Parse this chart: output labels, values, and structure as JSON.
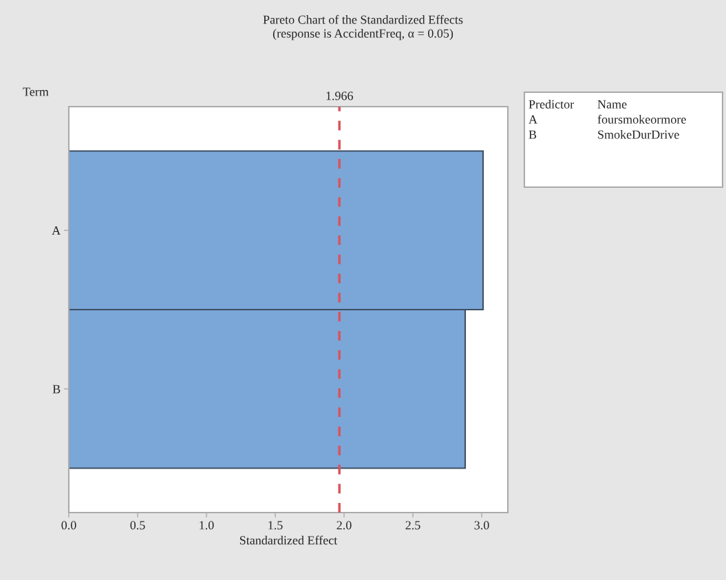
{
  "chart_data": {
    "type": "bar",
    "orientation": "horizontal",
    "title": "Pareto Chart of the Standardized Effects",
    "subtitle": "(response is AccidentFreq, α = 0.05)",
    "xlabel": "Standardized Effect",
    "ylabel": "Term",
    "categories": [
      "A",
      "B"
    ],
    "values": [
      3.01,
      2.88
    ],
    "color": "#7ba6d8",
    "xlim": [
      0,
      3.19
    ],
    "xticks": [
      {
        "value": 0,
        "label": "0.0"
      },
      0.5,
      {
        "value": 1,
        "label": "1.0"
      },
      1.5,
      {
        "value": 2,
        "label": "2.0"
      },
      2.5,
      {
        "value": 3,
        "label": "3.0"
      }
    ],
    "ref_lines": [
      {
        "axis": "x",
        "value": 1.966,
        "label": "1.966",
        "color": "#d9545c",
        "line_style": "dashed"
      }
    ],
    "annotations": [
      "Predictor",
      "Name",
      "A",
      "foursmokeormore",
      "B",
      "SmokeDurDrive"
    ],
    "grid": false,
    "legend": false
  }
}
